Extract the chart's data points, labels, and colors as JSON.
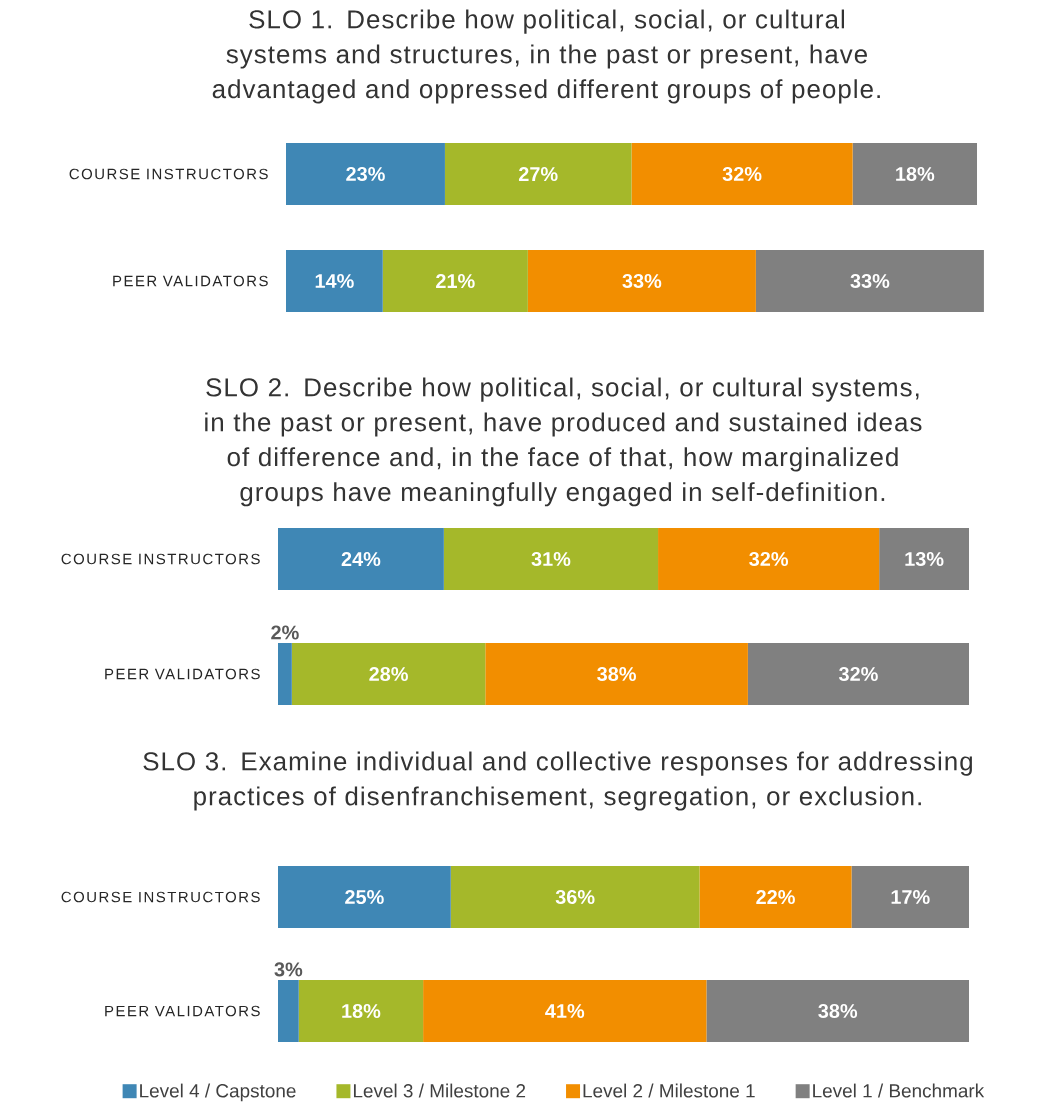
{
  "chart_data": [
    {
      "type": "bar",
      "orientation": "horizontal",
      "stacked": true,
      "title": "SLO 1. Describe how political, social, or cultural systems and structures, in the past or present, have advantaged and oppressed different groups of people.",
      "categories": [
        "COURSE INSTRUCTORS",
        "PEER VALIDATORS"
      ],
      "series": [
        {
          "color": "#3f87b5",
          "values": [
            23,
            14
          ],
          "value_labels": [
            "23%",
            "14%"
          ]
        },
        {
          "color": "#a5b82a",
          "values": [
            27,
            21
          ],
          "value_labels": [
            "27%",
            "21%"
          ]
        },
        {
          "color": "#f28e00",
          "values": [
            32,
            33
          ],
          "value_labels": [
            "32%",
            "33%"
          ]
        },
        {
          "color": "#808080",
          "values": [
            18,
            33
          ],
          "value_labels": [
            "18%",
            "33%"
          ]
        }
      ]
    },
    {
      "type": "bar",
      "orientation": "horizontal",
      "stacked": true,
      "title": "SLO 2. Describe how political, social, or cultural systems, in the past or present, have produced and sustained ideas of difference and, in the face of that, how marginalized groups have meaningfully engaged in self-definition.",
      "categories": [
        "COURSE INSTRUCTORS",
        "PEER VALIDATORS"
      ],
      "series": [
        {
          "color": "#3f87b5",
          "values": [
            24,
            2
          ],
          "value_labels": [
            "24%",
            "2%"
          ]
        },
        {
          "color": "#a5b82a",
          "values": [
            31,
            28
          ],
          "value_labels": [
            "31%",
            "28%"
          ]
        },
        {
          "color": "#f28e00",
          "values": [
            32,
            38
          ],
          "value_labels": [
            "32%",
            "38%"
          ]
        },
        {
          "color": "#808080",
          "values": [
            13,
            32
          ],
          "value_labels": [
            "13%",
            "32%"
          ]
        }
      ]
    },
    {
      "type": "bar",
      "orientation": "horizontal",
      "stacked": true,
      "legend": "bottom",
      "title": "SLO 3. Examine individual and collective responses for addressing practices of disenfranchisement, segregation, or exclusion.",
      "categories": [
        "COURSE INSTRUCTORS",
        "PEER VALIDATORS"
      ],
      "series": [
        {
          "name": "Level 4 / Capstone",
          "color": "#3f87b5",
          "values": [
            25,
            3
          ],
          "value_labels": [
            "25%",
            "3%"
          ]
        },
        {
          "name": "Level 3 / Milestone 2",
          "color": "#a5b82a",
          "values": [
            36,
            18
          ],
          "value_labels": [
            "36%",
            "18%"
          ]
        },
        {
          "name": "Level 2 / Milestone 1",
          "color": "#f28e00",
          "values": [
            22,
            41
          ],
          "value_labels": [
            "22%",
            "41%"
          ]
        },
        {
          "name": "Level 1 / Benchmark",
          "color": "#808080",
          "values": [
            17,
            38
          ],
          "value_labels": [
            "17%",
            "38%"
          ]
        }
      ]
    }
  ]
}
